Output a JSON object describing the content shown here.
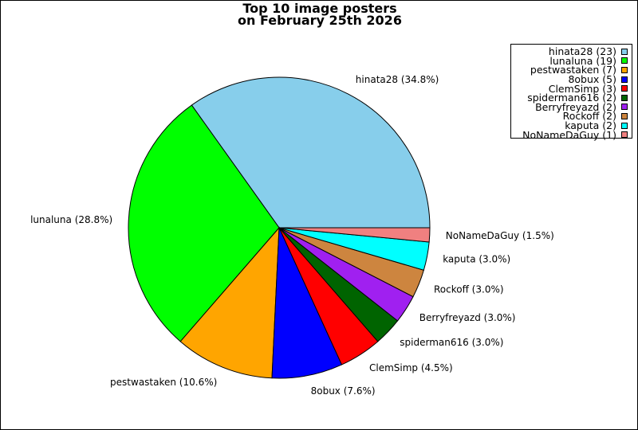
{
  "chart_data": {
    "type": "pie",
    "title": [
      "Top 10 image posters",
      "on February 25th 2026"
    ],
    "legend_position": "top-right",
    "slices": [
      {
        "name": "hinata28",
        "count": 23,
        "percent": 34.8,
        "color": "#87ceeb",
        "legend": "hinata28 (23)",
        "label": "hinata28 (34.8%)"
      },
      {
        "name": "lunaluna",
        "count": 19,
        "percent": 28.8,
        "color": "#00ff00",
        "legend": "lunaluna (19)",
        "label": "lunaluna (28.8%)"
      },
      {
        "name": "pestwastaken",
        "count": 7,
        "percent": 10.6,
        "color": "#ffa500",
        "legend": "pestwastaken (7)",
        "label": "pestwastaken (10.6%)"
      },
      {
        "name": "8obux",
        "count": 5,
        "percent": 7.6,
        "color": "#0000ff",
        "legend": "8obux (5)",
        "label": "8obux (7.6%)"
      },
      {
        "name": "ClemSimp",
        "count": 3,
        "percent": 4.5,
        "color": "#ff0000",
        "legend": "ClemSimp (3)",
        "label": "ClemSimp (4.5%)"
      },
      {
        "name": "spiderman616",
        "count": 2,
        "percent": 3.0,
        "color": "#006400",
        "legend": "spiderman616 (2)",
        "label": "spiderman616 (3.0%)"
      },
      {
        "name": "Berryfreyazd",
        "count": 2,
        "percent": 3.0,
        "color": "#a020f0",
        "legend": "Berryfreyazd (2)",
        "label": "Berryfreyazd (3.0%)"
      },
      {
        "name": "Rockoff",
        "count": 2,
        "percent": 3.0,
        "color": "#cd853f",
        "legend": "Rockoff (2)",
        "label": "Rockoff (3.0%)"
      },
      {
        "name": "kaputa",
        "count": 2,
        "percent": 3.0,
        "color": "#00ffff",
        "legend": "kaputa (2)",
        "label": "kaputa (3.0%)"
      },
      {
        "name": "NoNameDaGuy",
        "count": 1,
        "percent": 1.5,
        "color": "#f08080",
        "legend": "NoNameDaGuy (1)",
        "label": "NoNameDaGuy (1.5%)"
      }
    ]
  }
}
